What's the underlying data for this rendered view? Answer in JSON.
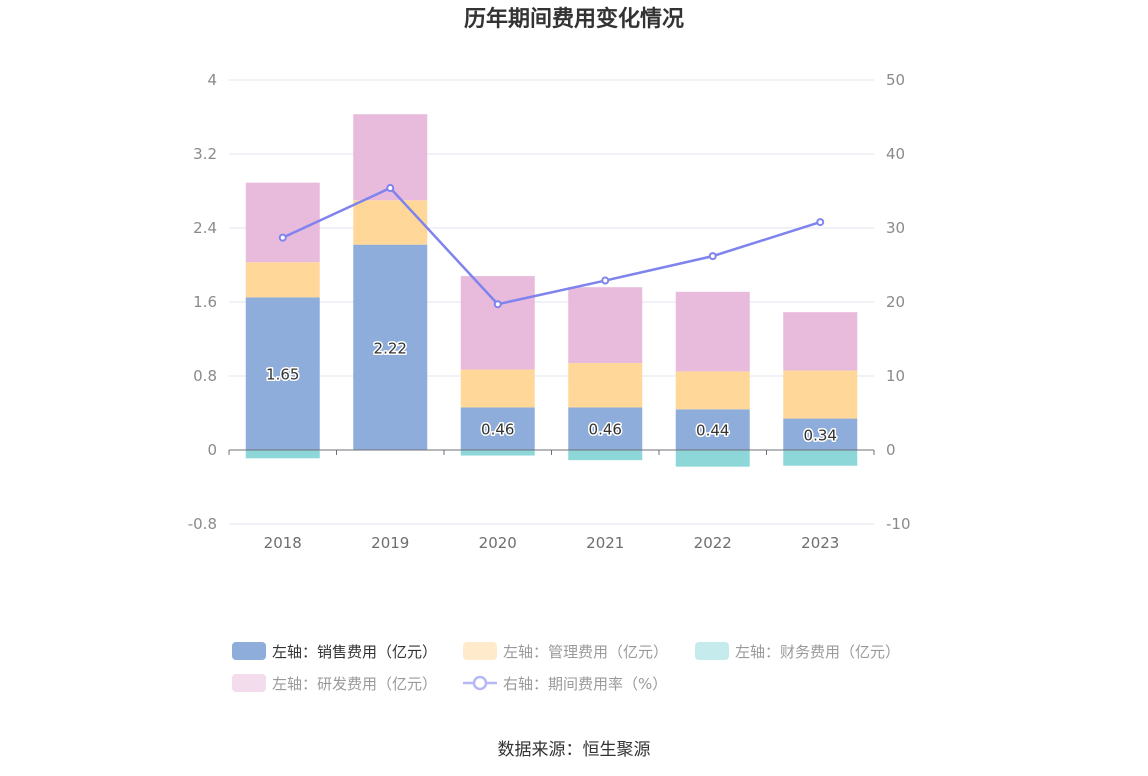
{
  "chart_data": {
    "type": "bar",
    "stacked": true,
    "title": "历年期间费用变化情况",
    "categories": [
      "2018",
      "2019",
      "2020",
      "2021",
      "2022",
      "2023"
    ],
    "y_left": {
      "min": -0.8,
      "max": 4,
      "ticks": [
        "4",
        "3.2",
        "2.4",
        "1.6",
        "0.8",
        "0",
        "-0.8"
      ]
    },
    "y_right": {
      "min": -10,
      "max": 50,
      "ticks": [
        "50",
        "40",
        "30",
        "20",
        "10",
        "0",
        "-10"
      ]
    },
    "series": [
      {
        "name": "左轴：销售费用（亿元）",
        "axis": "left",
        "type": "bar",
        "color": "#8EADDB",
        "values": [
          1.65,
          2.22,
          0.46,
          0.46,
          0.44,
          0.34
        ],
        "labels": [
          "1.65",
          "2.22",
          "0.46",
          "0.46",
          "0.44",
          "0.34"
        ]
      },
      {
        "name": "左轴：管理费用（亿元）",
        "axis": "left",
        "type": "bar",
        "color": "#FFD899",
        "values": [
          0.38,
          0.48,
          0.41,
          0.48,
          0.41,
          0.52
        ]
      },
      {
        "name": "左轴：财务费用（亿元）",
        "axis": "left",
        "type": "bar",
        "color": "#8DD7D9",
        "values": [
          -0.09,
          0.0,
          -0.06,
          -0.11,
          -0.18,
          -0.17
        ]
      },
      {
        "name": "左轴：研发费用（亿元）",
        "axis": "left",
        "type": "bar",
        "color": "#E8BADB",
        "values": [
          0.86,
          0.93,
          1.01,
          0.82,
          0.86,
          0.63
        ]
      },
      {
        "name": "右轴：期间费用率（%）",
        "axis": "right",
        "type": "line",
        "color": "#7F83EE",
        "values": [
          28.7,
          35.4,
          19.7,
          22.9,
          26.2,
          30.8
        ]
      }
    ]
  },
  "legend": {
    "rows": [
      [
        {
          "label": "左轴：销售费用（亿元）",
          "color": "#8EADDB",
          "shape": "rect",
          "active": true
        },
        {
          "label": "左轴：管理费用（亿元）",
          "color": "#FFEBCC",
          "shape": "rect",
          "active": false
        },
        {
          "label": "左轴：财务费用（亿元）",
          "color": "#C6EBEC",
          "shape": "rect",
          "active": false
        }
      ],
      [
        {
          "label": "左轴：研发费用（亿元）",
          "color": "#F3DCEC",
          "shape": "rect",
          "active": false
        },
        {
          "label": "右轴：期间费用率（%）",
          "color": "#B6B8F5",
          "shape": "line",
          "active": false
        }
      ]
    ]
  },
  "source": "数据来源：恒生聚源"
}
